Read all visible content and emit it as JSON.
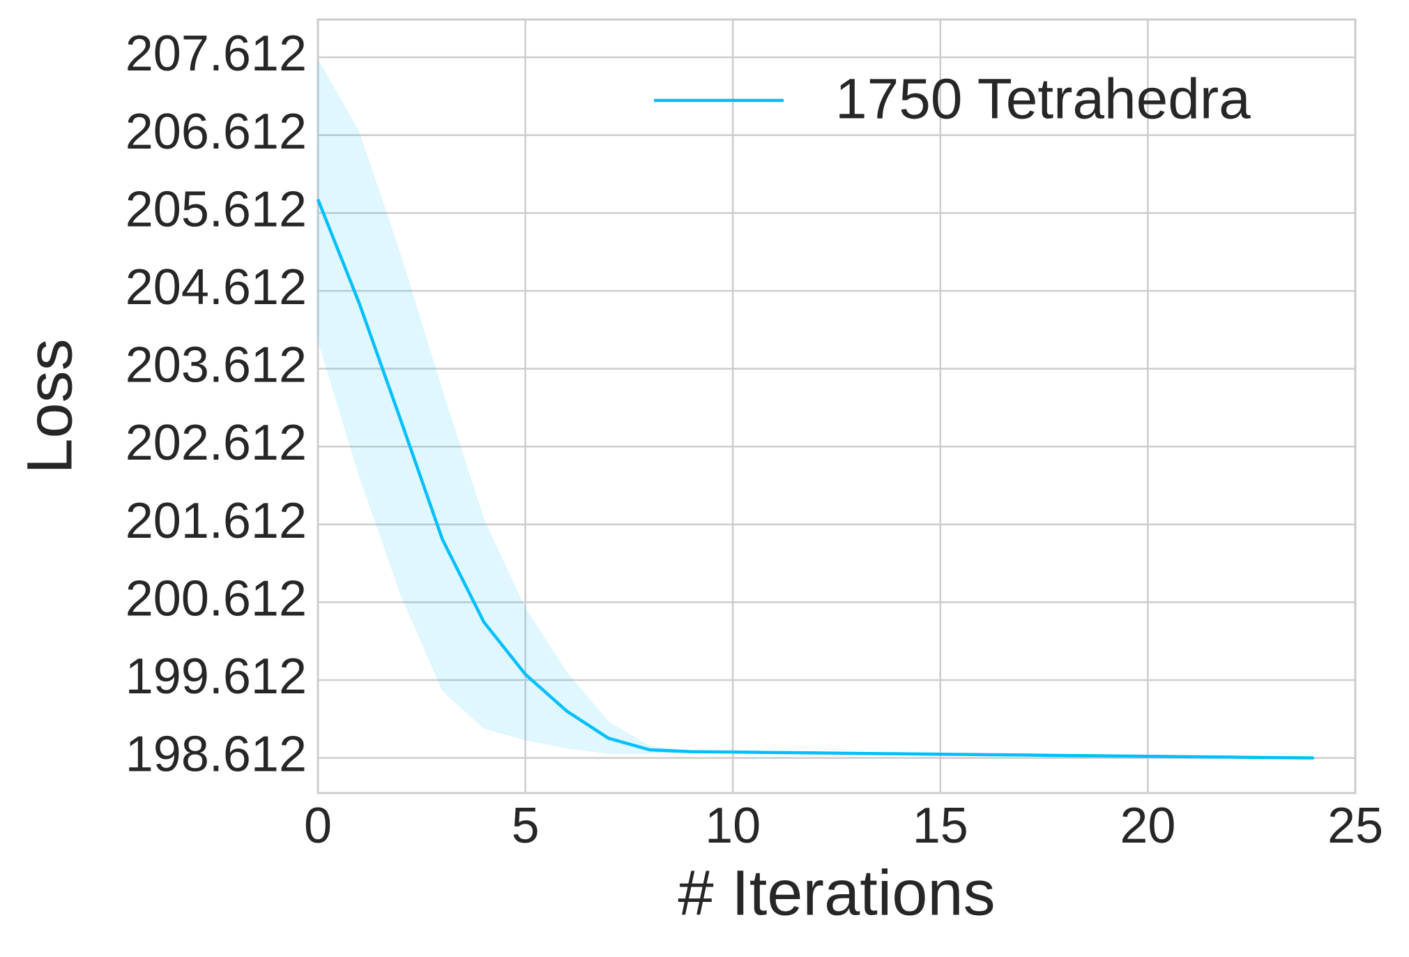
{
  "chart_data": {
    "type": "line",
    "xlabel": "# Iterations",
    "ylabel": "Loss",
    "x": [
      0,
      1,
      2,
      3,
      4,
      5,
      6,
      7,
      8,
      9,
      10,
      11,
      12,
      13,
      14,
      15,
      16,
      17,
      18,
      19,
      20,
      21,
      22,
      23,
      24
    ],
    "series": [
      {
        "name": "1750 Tetrahedra",
        "color": "#00bfff",
        "values": [
          205.787,
          204.447,
          202.945,
          201.42,
          200.357,
          199.686,
          199.213,
          198.866,
          198.716,
          198.693,
          198.688,
          198.682,
          198.677,
          198.671,
          198.666,
          198.661,
          198.655,
          198.65,
          198.644,
          198.639,
          198.634,
          198.628,
          198.623,
          198.617,
          198.612
        ],
        "upper": [
          207.589,
          206.641,
          205.058,
          203.325,
          201.673,
          200.529,
          199.709,
          199.074,
          198.762,
          198.703,
          198.698,
          198.692,
          198.687,
          198.681,
          198.676,
          198.671,
          198.665,
          198.66,
          198.654,
          198.649,
          198.644,
          198.638,
          198.633,
          198.627,
          198.622
        ],
        "lower": [
          203.984,
          202.228,
          200.703,
          199.478,
          198.993,
          198.843,
          198.739,
          198.67,
          198.67,
          198.683,
          198.678,
          198.672,
          198.667,
          198.661,
          198.656,
          198.651,
          198.645,
          198.64,
          198.634,
          198.629,
          198.624,
          198.618,
          198.613,
          198.607,
          198.602
        ]
      }
    ],
    "xlim": [
      0,
      25
    ],
    "xticks": [
      0,
      5,
      10,
      15,
      20,
      25
    ],
    "ylim": [
      198.161,
      208.097
    ],
    "yticks": [
      198.612,
      199.612,
      200.612,
      201.612,
      202.612,
      203.612,
      204.612,
      205.612,
      206.612,
      207.612
    ],
    "grid": true,
    "legend": "upper right"
  }
}
